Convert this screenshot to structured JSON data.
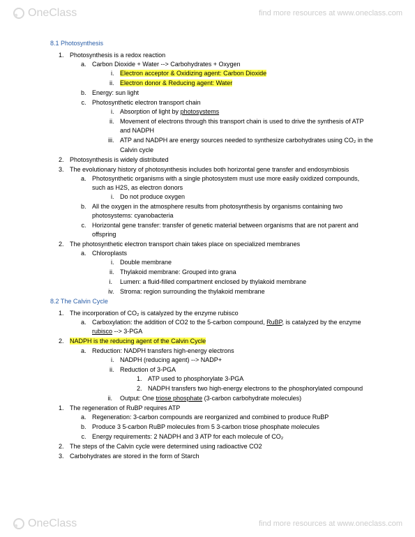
{
  "watermark": {
    "brand": "OneClass",
    "tagline": "find more resources at www.oneclass.com"
  },
  "sections": [
    {
      "title": "8.1 Photosynthesis",
      "level1": [
        {
          "text": "Photosynthesis is a redox reaction",
          "level2": [
            {
              "text": "Carbon Dioxide + Water --> Carbohydrates + Oxygen",
              "level3": [
                {
                  "highlight": true,
                  "text": "Electron acceptor & Oxidizing agent: Carbon Dioxide"
                },
                {
                  "highlight": true,
                  "text": "Electron donor & Reducing agent: Water"
                }
              ]
            },
            {
              "text": "Energy: sun light"
            },
            {
              "text": "Photosynthetic electron transport chain",
              "level3": [
                {
                  "text_pre": "Absorption of light by ",
                  "underline": "photosystems"
                },
                {
                  "text": "Movement of electrons through this transport chain is used to drive the synthesis of ATP and NADPH"
                },
                {
                  "text": "ATP and NADPH are energy sources needed to synthesize carbohydrates using CO₂ in the Calvin cycle"
                }
              ]
            }
          ]
        },
        {
          "text": "Photosynthesis is widely distributed"
        },
        {
          "text": "The evolutionary history of photosynthesis includes both horizontal gene transfer and endosymbiosis",
          "hang": true,
          "level2": [
            {
              "text": "Photosynthetic organisms with a single photosystem must use more easily oxidized compounds, such as H2S, as electron donors",
              "level3": [
                {
                  "text": "Do not produce oxygen"
                }
              ]
            },
            {
              "text": "All the oxygen in the atmosphere results from photosynthesis by organisms containing two photosystems: cyanobacteria"
            },
            {
              "text": "Horizontal gene transfer: transfer of genetic material between organisms that are not parent and offspring"
            }
          ]
        },
        {
          "num_override": "2",
          "text": "The photosynthetic electron transport chain takes place on specialized membranes",
          "level2": [
            {
              "text": "Chloroplasts",
              "level3": [
                {
                  "text": "Double membrane"
                },
                {
                  "text": "Thylakoid membrane: Grouped into grana"
                },
                {
                  "text": "Lumen: a fluid-filled compartment enclosed by thylakoid membrane",
                  "marker": "i"
                },
                {
                  "text": "Stroma: region surrounding the thylakoid membrane"
                }
              ]
            }
          ]
        }
      ]
    },
    {
      "title": "8.2 The Calvin Cycle",
      "level1": [
        {
          "text": "The incorporation of CO₂ is catalyzed by the enzyme rubisco",
          "level2": [
            {
              "rich": true,
              "pre": "Carboxylation: the addition of CO2 to the 5-carbon compound, ",
              "u1": "RuBP",
              "mid": ", is catalyzed by the enzyme ",
              "u2": "rubisco",
              "post": " --> 3-PGA"
            }
          ]
        },
        {
          "highlight": true,
          "text": "NADPH is the reducing agent of the Calvin Cycle",
          "num_override": "2",
          "level2": [
            {
              "text": "Reduction: NADPH transfers high-energy electrons",
              "level3": [
                {
                  "text": "NADPH (reducing agent) --> NADP+"
                },
                {
                  "text": "Reduction of 3-PGA",
                  "level4": [
                    {
                      "text": "ATP used to phosphorylate 3-PGA"
                    },
                    {
                      "text": "NADPH transfers two high-energy electrons to the phosphorylated compound"
                    }
                  ]
                },
                {
                  "rich": true,
                  "pre": "Output: One ",
                  "u1": "triose phosphate",
                  "post": " (3-carbon carbohydrate molecules)",
                  "marker": "ii"
                }
              ]
            }
          ]
        },
        {
          "text": "The regeneration of RuBP requires ATP",
          "num_override": "1",
          "level2": [
            {
              "text": "Regeneration: 3-carbon compounds are reorganized and combined to produce RuBP"
            },
            {
              "text": "Produce 3 5-carbon RuBP molecules from 5 3-carbon triose phosphate molecules"
            },
            {
              "text": "Energy requirements: 2 NADPH and 3 ATP for each molecule of CO₂"
            }
          ]
        },
        {
          "text": "The steps of the Calvin cycle were determined using radioactive CO2",
          "num_override": "2"
        },
        {
          "text": "Carbohydrates are stored in the form of Starch",
          "num_override": "3"
        }
      ]
    }
  ],
  "colors": {
    "section_title": "#2a5ea8",
    "highlight_bg": "#ffff4d",
    "text": "#000000",
    "watermark": "#cccccc",
    "background": "#ffffff"
  },
  "fontsize_pt": {
    "body": 7,
    "section_title": 7,
    "watermark_logo": 12,
    "watermark_text": 8
  }
}
